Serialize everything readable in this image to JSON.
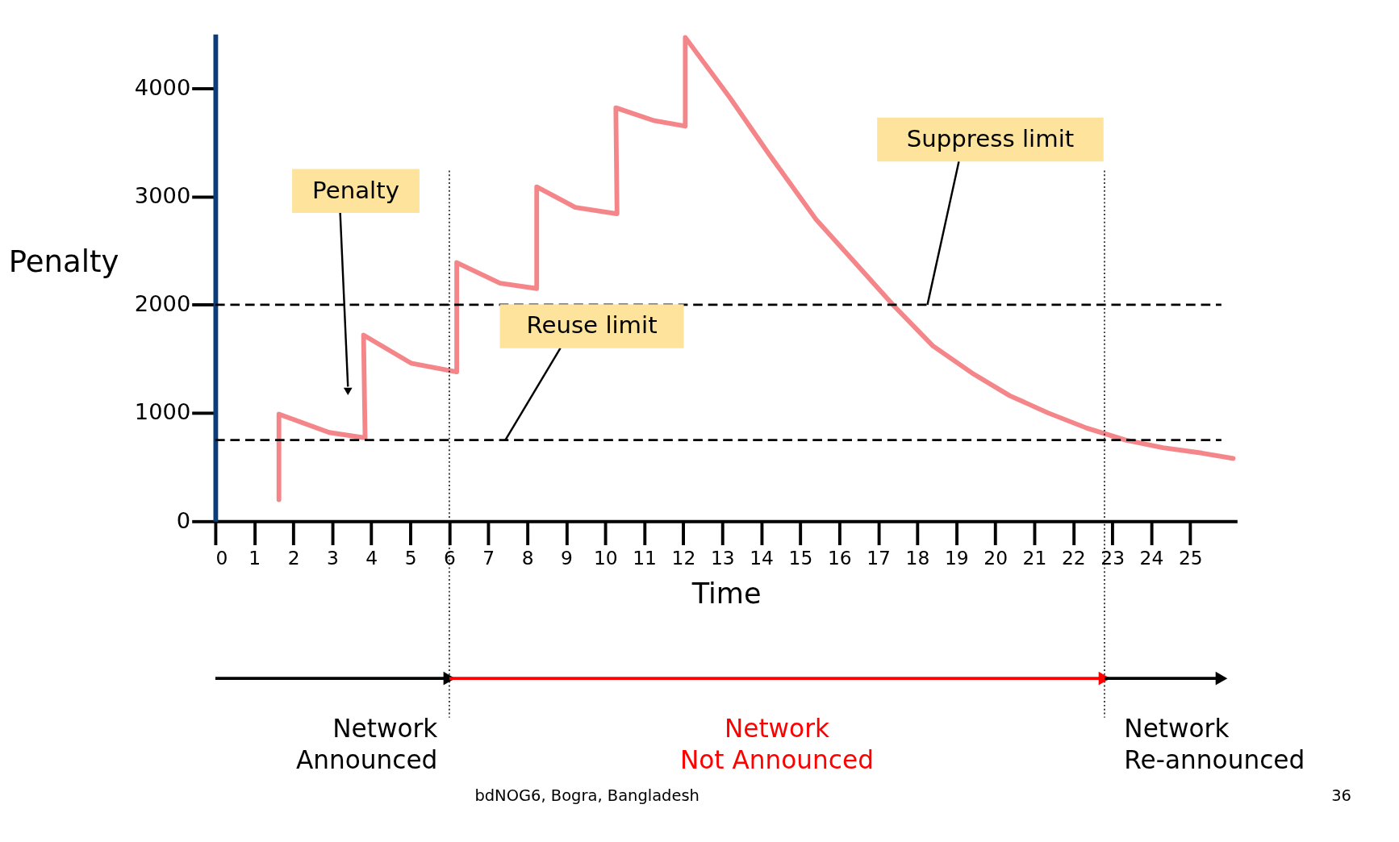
{
  "chart_data": {
    "type": "line",
    "xlabel": "Time",
    "ylabel": "Penalty",
    "xlim": [
      0,
      26.2
    ],
    "ylim": [
      0,
      4500
    ],
    "xticks": [
      0,
      1,
      2,
      3,
      4,
      5,
      6,
      7,
      8,
      9,
      10,
      11,
      12,
      13,
      14,
      15,
      16,
      17,
      18,
      19,
      20,
      21,
      22,
      23,
      24,
      25
    ],
    "yticks": [
      0,
      1000,
      2000,
      3000,
      4000
    ],
    "series": [
      {
        "color": "#f4868a",
        "x": [
          1.63,
          1.63,
          2.92,
          3.84,
          3.8,
          5.02,
          6.19,
          6.19,
          7.3,
          8.24,
          8.24,
          9.23,
          10.3,
          10.27,
          11.26,
          12.05,
          12.05,
          13.2,
          14.18,
          15.4,
          16.4,
          17.4,
          18.4,
          19.4,
          20.37,
          21.36,
          22.35,
          23.34,
          24.3,
          25.3,
          26.1
        ],
        "values": [
          200,
          990,
          820,
          770,
          1720,
          1460,
          1380,
          2390,
          2200,
          2150,
          3090,
          2900,
          2840,
          3820,
          3700,
          3650,
          4470,
          3910,
          3400,
          2790,
          2390,
          1990,
          1620,
          1370,
          1160,
          1000,
          860,
          750,
          680,
          630,
          580
        ]
      }
    ],
    "ref_lines": [
      {
        "axis": "y",
        "value": 2000,
        "label": "Suppress limit",
        "line_style": "dashed",
        "color": "#000000"
      },
      {
        "axis": "y",
        "value": 750,
        "label": "Reuse limit",
        "line_style": "dashed",
        "color": "#000000"
      },
      {
        "axis": "x",
        "value": 6,
        "line_style": "dotted",
        "color": "#000000"
      },
      {
        "axis": "x",
        "value": 22.8,
        "line_style": "dotted",
        "color": "#000000"
      }
    ],
    "annotations": [
      {
        "text": "Penalty",
        "x": 3.4,
        "y": 1200
      },
      "Network Announced",
      "Network Not Announced",
      "Network Re-announced",
      "bdNOG6, Bogra, Bangladesh",
      "36"
    ],
    "grid": false,
    "line_style": "solid",
    "marker": "none"
  }
}
